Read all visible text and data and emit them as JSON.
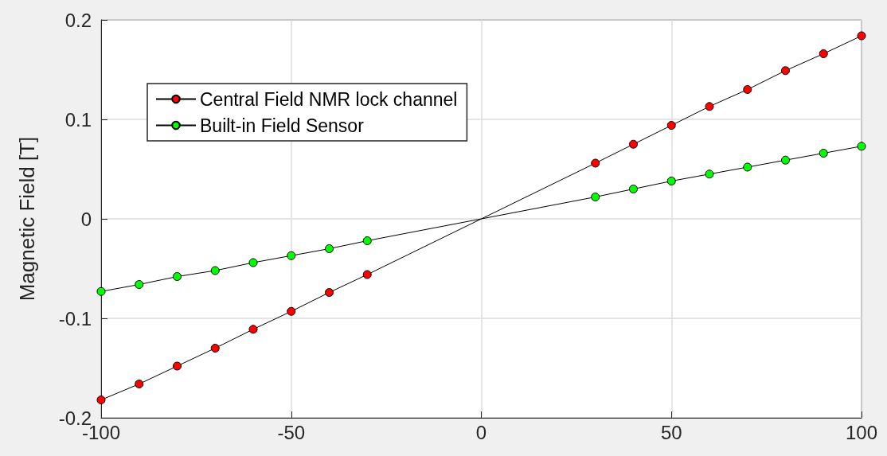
{
  "chart_data": {
    "type": "line",
    "ylabel": "Magnetic Field [T]",
    "xlim": [
      -100,
      100
    ],
    "xticks": [
      -100,
      -50,
      0,
      50,
      100
    ],
    "ylim": [
      -0.2,
      0.2
    ],
    "yticks": [
      -0.2,
      -0.1,
      0,
      0.1,
      0.2
    ],
    "grid": true,
    "legend": "top left",
    "marker": "circle",
    "line_style": "solid",
    "series": [
      {
        "name": "Central Field NMR lock channel",
        "color": "#ff0000",
        "x": [
          -100,
          -90,
          -80,
          -70,
          -60,
          -50,
          -40,
          -30,
          30,
          40,
          50,
          60,
          70,
          80,
          90,
          100
        ],
        "values": [
          -0.182,
          -0.166,
          -0.148,
          -0.13,
          -0.111,
          -0.093,
          -0.074,
          -0.056,
          0.056,
          0.075,
          0.094,
          0.113,
          0.13,
          0.149,
          0.166,
          0.184
        ]
      },
      {
        "name": "Built-in Field Sensor",
        "color": "#00ff00",
        "x": [
          -100,
          -90,
          -80,
          -70,
          -60,
          -50,
          -40,
          -30,
          30,
          40,
          50,
          60,
          70,
          80,
          90,
          100
        ],
        "values": [
          -0.073,
          -0.066,
          -0.058,
          -0.052,
          -0.044,
          -0.037,
          -0.03,
          -0.022,
          0.022,
          0.03,
          0.038,
          0.045,
          0.052,
          0.059,
          0.066,
          0.073
        ]
      }
    ]
  }
}
